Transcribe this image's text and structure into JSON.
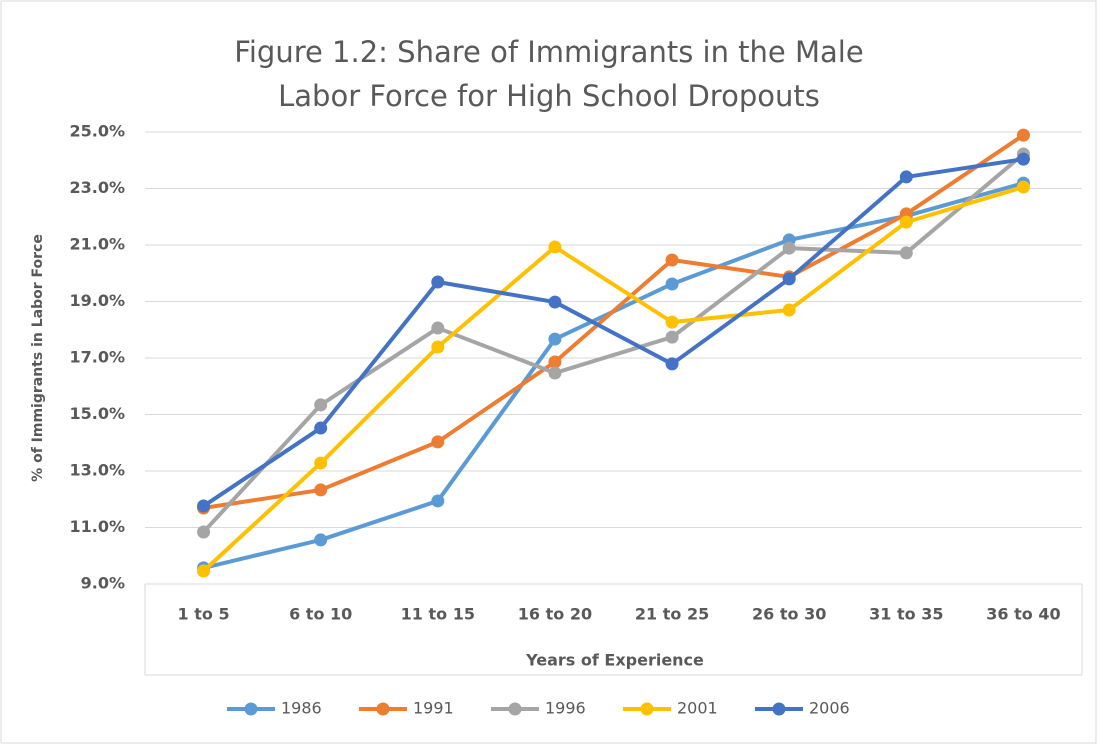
{
  "chart_data": {
    "type": "line",
    "title": "Figure 1.2: Share of Immigrants in the Male Labor Force for High School Dropouts",
    "x_label": "Years of Experience",
    "y_label": "% of Immigrants in Labor Force",
    "categories": [
      "1 to 5",
      "6 to 10",
      "11 to 15",
      "16 to 20",
      "21 to 25",
      "26 to 30",
      "31 to 35",
      "36 to 40"
    ],
    "series": [
      {
        "name": "1986",
        "color": "#5b9bd5",
        "values": [
          9.57,
          10.56,
          11.94,
          17.67,
          19.62,
          21.18,
          22.03,
          23.19
        ]
      },
      {
        "name": "1991",
        "color": "#ed7d31",
        "values": [
          11.69,
          12.33,
          14.03,
          16.86,
          20.47,
          19.87,
          22.1,
          24.89
        ]
      },
      {
        "name": "1996",
        "color": "#a5a5a5",
        "values": [
          10.84,
          15.34,
          18.06,
          16.47,
          17.74,
          20.89,
          20.72,
          24.22
        ]
      },
      {
        "name": "2001",
        "color": "#ffc000",
        "values": [
          9.46,
          13.28,
          17.39,
          20.93,
          18.27,
          18.7,
          21.81,
          23.05
        ]
      },
      {
        "name": "2006",
        "color": "#4472c4",
        "values": [
          11.76,
          14.52,
          19.69,
          18.98,
          16.79,
          19.8,
          23.41,
          24.04
        ]
      }
    ],
    "ylim": [
      9,
      25
    ],
    "yticks": [
      {
        "value": 9,
        "label": "9.0%"
      },
      {
        "value": 11,
        "label": "11.0%"
      },
      {
        "value": 13,
        "label": "13.0%"
      },
      {
        "value": 15,
        "label": "15.0%"
      },
      {
        "value": 17,
        "label": "17.0%"
      },
      {
        "value": 19,
        "label": "19.0%"
      },
      {
        "value": 21,
        "label": "21.0%"
      },
      {
        "value": 23,
        "label": "23.0%"
      },
      {
        "value": 25,
        "label": "25.0%"
      }
    ],
    "grid": true,
    "legend": "bottom"
  }
}
